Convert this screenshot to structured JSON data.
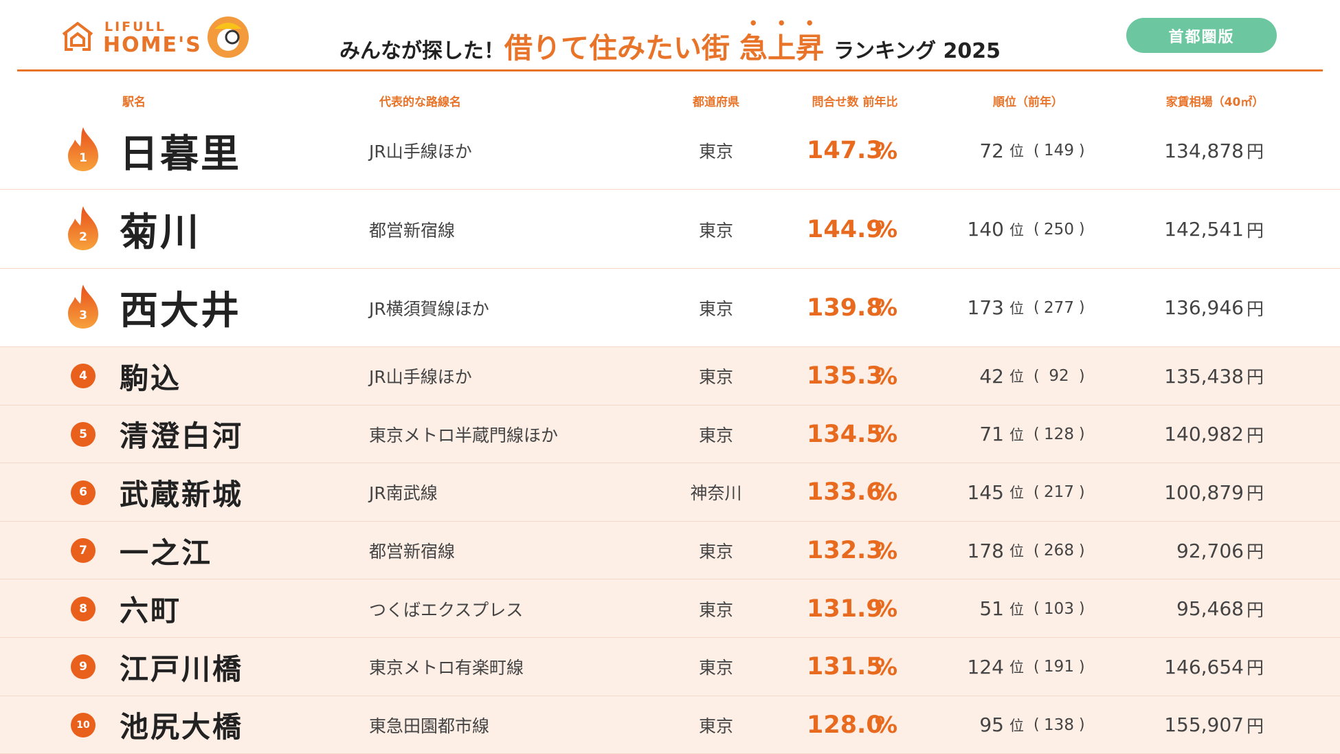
{
  "header": {
    "logo_top": "LIFULL",
    "logo_bottom": "HOME'S",
    "title": {
      "lead": "みんなが探した！",
      "main": "借りて住みたい街",
      "emphasis": "急上昇",
      "tail": "ランキング 2025"
    },
    "badge": "首都圏版"
  },
  "table": {
    "columns": [
      "駅名",
      "代表的な路線名",
      "都道府県",
      "問合せ数 前年比",
      "順位（前年）",
      "家賃相場（40㎡）"
    ],
    "units": {
      "ratio": "%",
      "rank": "位",
      "open": "(",
      "close": ")",
      "rent": "円"
    },
    "rows": [
      {
        "rank": 1,
        "station": "日暮里",
        "line": "JR山手線ほか",
        "prefecture": "東京",
        "ratio": "147.3",
        "current_rank": "72",
        "previous_rank": "149",
        "rent": "134,878"
      },
      {
        "rank": 2,
        "station": "菊川",
        "line": "都営新宿線",
        "prefecture": "東京",
        "ratio": "144.9",
        "current_rank": "140",
        "previous_rank": "250",
        "rent": "142,541"
      },
      {
        "rank": 3,
        "station": "西大井",
        "line": "JR横須賀線ほか",
        "prefecture": "東京",
        "ratio": "139.8",
        "current_rank": "173",
        "previous_rank": "277",
        "rent": "136,946"
      },
      {
        "rank": 4,
        "station": "駒込",
        "line": "JR山手線ほか",
        "prefecture": "東京",
        "ratio": "135.3",
        "current_rank": "42",
        "previous_rank": "92",
        "rent": "135,438"
      },
      {
        "rank": 5,
        "station": "清澄白河",
        "line": "東京メトロ半蔵門線ほか",
        "prefecture": "東京",
        "ratio": "134.5",
        "current_rank": "71",
        "previous_rank": "128",
        "rent": "140,982"
      },
      {
        "rank": 6,
        "station": "武蔵新城",
        "line": "JR南武線",
        "prefecture": "神奈川",
        "ratio": "133.6",
        "current_rank": "145",
        "previous_rank": "217",
        "rent": "100,879"
      },
      {
        "rank": 7,
        "station": "一之江",
        "line": "都営新宿線",
        "prefecture": "東京",
        "ratio": "132.3",
        "current_rank": "178",
        "previous_rank": "268",
        "rent": "92,706"
      },
      {
        "rank": 8,
        "station": "六町",
        "line": "つくばエクスプレス",
        "prefecture": "東京",
        "ratio": "131.9",
        "current_rank": "51",
        "previous_rank": "103",
        "rent": "95,468"
      },
      {
        "rank": 9,
        "station": "江戸川橋",
        "line": "東京メトロ有楽町線",
        "prefecture": "東京",
        "ratio": "131.5",
        "current_rank": "124",
        "previous_rank": "191",
        "rent": "146,654"
      },
      {
        "rank": 10,
        "station": "池尻大橋",
        "line": "東急田園都市線",
        "prefecture": "東京",
        "ratio": "128.0",
        "current_rank": "95",
        "previous_rank": "138",
        "rent": "155,907"
      }
    ]
  }
}
